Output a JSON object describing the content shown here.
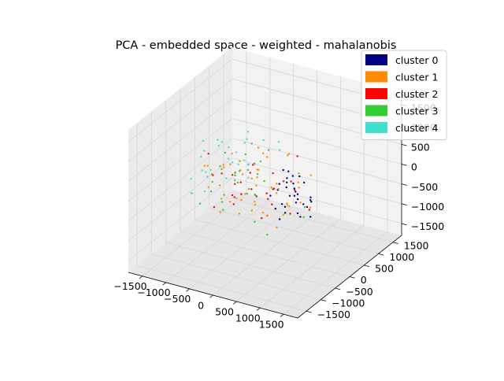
{
  "chart_data": {
    "type": "scatter",
    "title": "PCA - embedded space - weighted - mahalanobis",
    "projection": "3d",
    "grid": true,
    "legend": "top-right",
    "xlim": [
      -1800,
      1800
    ],
    "ylim": [
      -1800,
      1800
    ],
    "zlim": [
      -1800,
      1800
    ],
    "x_ticks": [
      -1500,
      -1000,
      -500,
      0,
      500,
      1000,
      1500
    ],
    "y_ticks": [
      -1500,
      -1000,
      -500,
      0,
      500,
      1000,
      1500
    ],
    "z_ticks": [
      -1500,
      -1000,
      -500,
      0,
      500,
      1000,
      1500
    ],
    "x_tick_labels": [
      "−1500",
      "−1000",
      "−500",
      "0",
      "500",
      "1000",
      "1500"
    ],
    "y_tick_labels": [
      "−1500",
      "−1000",
      "−500",
      "0",
      "500",
      "1000",
      "1500"
    ],
    "z_tick_labels": [
      "−1500",
      "−1000",
      "−500",
      "0",
      "500",
      "1000",
      "1500"
    ],
    "series": [
      {
        "name": "cluster 0",
        "color": "#000080",
        "points": [
          [
            720,
            -210,
            520
          ],
          [
            560,
            -150,
            380
          ],
          [
            880,
            -80,
            330
          ],
          [
            640,
            -300,
            260
          ],
          [
            500,
            -60,
            200
          ],
          [
            760,
            -180,
            120
          ],
          [
            420,
            -240,
            90
          ],
          [
            900,
            -330,
            60
          ],
          [
            600,
            40,
            20
          ],
          [
            700,
            -120,
            -40
          ],
          [
            820,
            -260,
            -90
          ],
          [
            540,
            -20,
            -150
          ],
          [
            660,
            -380,
            -180
          ],
          [
            980,
            -140,
            -220
          ],
          [
            460,
            -160,
            -300
          ],
          [
            780,
            60,
            -330
          ],
          [
            600,
            -280,
            -410
          ],
          [
            880,
            -210,
            -460
          ],
          [
            720,
            -40,
            -520
          ],
          [
            520,
            -340,
            -560
          ],
          [
            1020,
            -60,
            -120
          ],
          [
            380,
            -120,
            160
          ],
          [
            940,
            -400,
            240
          ],
          [
            660,
            120,
            300
          ],
          [
            300,
            -300,
            -60
          ],
          [
            1100,
            -220,
            40
          ],
          [
            480,
            -420,
            -260
          ],
          [
            800,
            -320,
            420
          ],
          [
            1150,
            -300,
            -320
          ],
          [
            620,
            -200,
            600
          ],
          [
            340,
            80,
            380
          ],
          [
            860,
            180,
            -200
          ]
        ]
      },
      {
        "name": "cluster 1",
        "color": "#ff8c00",
        "points": [
          [
            -400,
            -200,
            300
          ],
          [
            -200,
            100,
            200
          ],
          [
            0,
            -300,
            100
          ],
          [
            200,
            -100,
            0
          ],
          [
            -600,
            200,
            -100
          ],
          [
            -300,
            -500,
            -200
          ],
          [
            100,
            300,
            -300
          ],
          [
            -100,
            -200,
            -400
          ],
          [
            300,
            -400,
            -500
          ],
          [
            -500,
            0,
            -600
          ],
          [
            -700,
            -300,
            400
          ],
          [
            -200,
            400,
            350
          ],
          [
            400,
            -250,
            250
          ],
          [
            -800,
            100,
            150
          ],
          [
            -50,
            -600,
            50
          ],
          [
            600,
            200,
            -50
          ],
          [
            -350,
            300,
            -150
          ],
          [
            150,
            -700,
            -250
          ],
          [
            -650,
            -450,
            -350
          ],
          [
            450,
            50,
            -450
          ],
          [
            -150,
            -100,
            -550
          ],
          [
            250,
            350,
            -650
          ],
          [
            -450,
            500,
            450
          ],
          [
            50,
            -350,
            550
          ],
          [
            -900,
            -100,
            -300
          ],
          [
            700,
            -300,
            -200
          ],
          [
            -250,
            -800,
            -100
          ],
          [
            350,
            600,
            0
          ],
          [
            -750,
            350,
            100
          ],
          [
            550,
            -500,
            200
          ],
          [
            -100,
            100,
            650
          ],
          [
            100,
            -100,
            -750
          ],
          [
            -550,
            -250,
            700
          ],
          [
            300,
            150,
            -800
          ],
          [
            -1000,
            200,
            -50
          ],
          [
            800,
            -150,
            350
          ],
          [
            -300,
            -400,
            -650
          ],
          [
            200,
            500,
            500
          ],
          [
            -650,
            600,
            -450
          ],
          [
            650,
            -650,
            -550
          ],
          [
            -1100,
            -300,
            250
          ],
          [
            900,
            100,
            -400
          ],
          [
            -400,
            -900,
            -350
          ],
          [
            50,
            700,
            300
          ],
          [
            -850,
            -600,
            500
          ],
          [
            450,
            -800,
            -150
          ],
          [
            -200,
            -700,
            600
          ],
          [
            700,
            450,
            150
          ],
          [
            -1200,
            0,
            -500
          ],
          [
            1000,
            -400,
            50
          ]
        ]
      },
      {
        "name": "cluster 2",
        "color": "#ff0000",
        "points": [
          [
            -100,
            -350,
            420
          ],
          [
            200,
            -50,
            330
          ],
          [
            -350,
            150,
            250
          ],
          [
            50,
            -550,
            170
          ],
          [
            -600,
            -150,
            90
          ],
          [
            400,
            250,
            10
          ],
          [
            -250,
            -650,
            -70
          ],
          [
            150,
            400,
            -150
          ],
          [
            -450,
            -400,
            -230
          ],
          [
            300,
            -250,
            -310
          ],
          [
            -700,
            300,
            -390
          ],
          [
            0,
            100,
            -470
          ],
          [
            -150,
            -800,
            380
          ],
          [
            500,
            -500,
            300
          ],
          [
            -800,
            -500,
            220
          ],
          [
            250,
            -700,
            140
          ],
          [
            -500,
            450,
            60
          ],
          [
            600,
            50,
            -20
          ],
          [
            -950,
            50,
            -100
          ],
          [
            100,
            -100,
            -180
          ],
          [
            -350,
            -250,
            -260
          ],
          [
            750,
            -350,
            -340
          ],
          [
            -650,
            -700,
            -420
          ],
          [
            350,
            550,
            460
          ],
          [
            -1050,
            -250,
            540
          ],
          [
            850,
            150,
            -500
          ],
          [
            -200,
            600,
            -580
          ],
          [
            450,
            -850,
            -260
          ],
          [
            -750,
            650,
            -160
          ],
          [
            -50,
            -1000,
            20
          ]
        ]
      },
      {
        "name": "cluster 3",
        "color": "#32cd32",
        "points": [
          [
            -600,
            300,
            350
          ],
          [
            -300,
            -100,
            280
          ],
          [
            -800,
            -200,
            200
          ],
          [
            -400,
            500,
            120
          ],
          [
            -100,
            -400,
            40
          ],
          [
            -700,
            100,
            -40
          ],
          [
            -500,
            -600,
            -120
          ],
          [
            -200,
            300,
            -200
          ],
          [
            -900,
            -400,
            -280
          ],
          [
            -350,
            -50,
            -360
          ],
          [
            -650,
            600,
            430
          ],
          [
            -150,
            -700,
            360
          ],
          [
            -1000,
            250,
            290
          ],
          [
            -450,
            -300,
            210
          ],
          [
            -750,
            -600,
            130
          ],
          [
            -250,
            150,
            50
          ],
          [
            -550,
            -150,
            -30
          ],
          [
            -1100,
            -50,
            -110
          ],
          [
            -50,
            -250,
            -190
          ],
          [
            -850,
            500,
            -270
          ],
          [
            -400,
            -800,
            -350
          ],
          [
            -950,
            -700,
            -430
          ],
          [
            -200,
            450,
            500
          ],
          [
            -700,
            -350,
            -510
          ],
          [
            150,
            -600,
            100
          ],
          [
            300,
            -850,
            -400
          ],
          [
            -1200,
            400,
            -200
          ],
          [
            1400,
            -900,
            350
          ],
          [
            1500,
            -1100,
            250
          ],
          [
            600,
            -900,
            -600
          ]
        ]
      },
      {
        "name": "cluster 4",
        "color": "#40e0d0",
        "points": [
          [
            -1100,
            300,
            500
          ],
          [
            -800,
            600,
            400
          ],
          [
            -1300,
            -100,
            300
          ],
          [
            -900,
            200,
            200
          ],
          [
            -1200,
            700,
            100
          ],
          [
            -700,
            -200,
            0
          ],
          [
            -1000,
            500,
            -100
          ],
          [
            -1400,
            100,
            -200
          ],
          [
            -600,
            400,
            -300
          ],
          [
            -1100,
            -300,
            -400
          ],
          [
            -850,
            800,
            550
          ],
          [
            -1250,
            400,
            450
          ],
          [
            -500,
            100,
            350
          ],
          [
            -950,
            -500,
            250
          ],
          [
            -1350,
            600,
            150
          ],
          [
            -750,
            300,
            50
          ],
          [
            -1150,
            0,
            -50
          ],
          [
            -650,
            700,
            -150
          ],
          [
            -1450,
            -200,
            -250
          ],
          [
            -900,
            900,
            -350
          ],
          [
            -400,
            600,
            600
          ],
          [
            -1300,
            -400,
            -450
          ],
          [
            -200,
            800,
            500
          ],
          [
            -1500,
            300,
            400
          ],
          [
            -800,
            -700,
            300
          ],
          [
            -1000,
            1000,
            200
          ],
          [
            -550,
            -100,
            650
          ],
          [
            -1200,
            -600,
            -300
          ],
          [
            -1600,
            500,
            0
          ],
          [
            -300,
            1000,
            150
          ]
        ]
      }
    ]
  }
}
